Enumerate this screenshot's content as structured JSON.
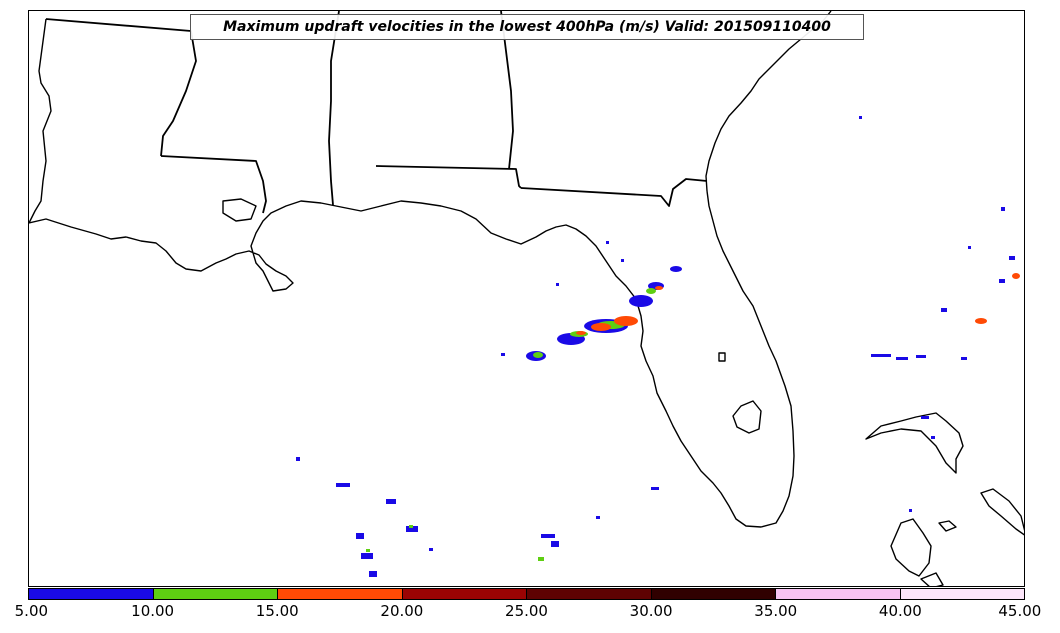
{
  "title": "Maximum updraft velocities in the lowest 400hPa (m/s) Valid: 201509110400",
  "colorbar": {
    "colors": [
      "#1a0ae6",
      "#5ecf12",
      "#ff4a05",
      "#9b0303",
      "#5e0202",
      "#300000",
      "#f7c4f2",
      "#fde6fb"
    ],
    "labels": [
      "5.00",
      "10.00",
      "15.00",
      "20.00",
      "25.00",
      "30.00",
      "35.00",
      "40.00",
      "45.00"
    ]
  }
}
